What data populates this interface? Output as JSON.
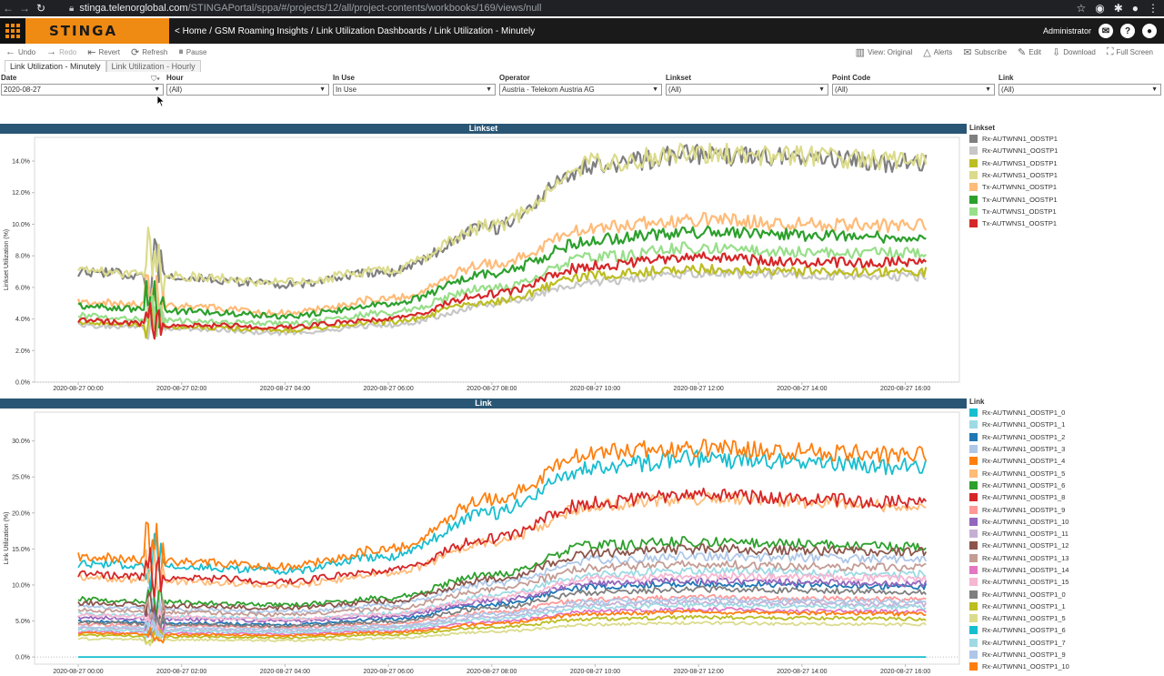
{
  "browser": {
    "url_host": "stinga.telenorglobal.com",
    "url_path": "/STINGAPortal/sppa/#/projects/12/all/project-contents/workbooks/169/views/null"
  },
  "header": {
    "logo": "STINGA",
    "breadcrumb": [
      "< Home",
      "GSM Roaming Insights",
      "Link Utilization Dashboards",
      "Link Utilization - Minutely"
    ],
    "user": "Administrator"
  },
  "toolbar": {
    "left": [
      {
        "label": "Undo",
        "icon": "undo-icon",
        "enabled": true
      },
      {
        "label": "Redo",
        "icon": "redo-icon",
        "enabled": false
      },
      {
        "label": "Revert",
        "icon": "revert-icon",
        "enabled": true
      },
      {
        "label": "Refresh",
        "icon": "refresh-icon",
        "enabled": true
      },
      {
        "label": "Pause",
        "icon": "pause-icon",
        "enabled": true
      }
    ],
    "right": [
      {
        "label": "View: Original",
        "icon": "view-icon"
      },
      {
        "label": "Alerts",
        "icon": "bell-icon"
      },
      {
        "label": "Subscribe",
        "icon": "mail-icon"
      },
      {
        "label": "Edit",
        "icon": "pencil-icon"
      },
      {
        "label": "Download",
        "icon": "download-icon"
      },
      {
        "label": "Full Screen",
        "icon": "fullscreen-icon"
      }
    ]
  },
  "tabs": [
    {
      "label": "Link Utilization - Minutely",
      "active": true
    },
    {
      "label": "Link Utilization - Hourly",
      "active": false
    }
  ],
  "filters": [
    {
      "label": "Date",
      "value": "2020-08-27"
    },
    {
      "label": "Hour",
      "value": "(All)"
    },
    {
      "label": "In Use",
      "value": "In Use"
    },
    {
      "label": "Operator",
      "value": "Austria - Telekom Austria AG"
    },
    {
      "label": "Linkset",
      "value": "(All)"
    },
    {
      "label": "Point Code",
      "value": "(All)"
    },
    {
      "label": "Link",
      "value": "(All)"
    }
  ],
  "charts": {
    "linkset": {
      "title": "Linkset",
      "ylabel": "Linkset Utilization (%)",
      "legend_title": "Linkset"
    },
    "link": {
      "title": "Link",
      "ylabel": "Link Utilization (%)",
      "legend_title": "Link"
    }
  },
  "chart_data": [
    {
      "type": "line",
      "title": "Linkset",
      "ylabel": "Linkset Utilization (%)",
      "xlabel": "",
      "x": [
        "2020-08-27 00:00",
        "2020-08-27 02:00",
        "2020-08-27 04:00",
        "2020-08-27 06:00",
        "2020-08-27 08:00",
        "2020-08-27 10:00",
        "2020-08-27 12:00",
        "2020-08-27 14:00",
        "2020-08-27 16:00"
      ],
      "x_ticks": [
        "2020-08-27 00:00",
        "2020-08-27 02:00",
        "2020-08-27 04:00",
        "2020-08-27 06:00",
        "2020-08-27 08:00",
        "2020-08-27 10:00",
        "2020-08-27 12:00",
        "2020-08-27 14:00",
        "2020-08-27 16:00"
      ],
      "y_ticks": [
        "0.0%",
        "2.0%",
        "4.0%",
        "6.0%",
        "8.0%",
        "10.0%",
        "12.0%",
        "14.0%"
      ],
      "ylim": [
        0,
        15.5
      ],
      "series": [
        {
          "name": "Rx-AUTWNN1_ODSTP1",
          "color": "#7f7f7f",
          "values": [
            7.0,
            6.6,
            6.2,
            7.0,
            9.8,
            13.8,
            14.4,
            14.2,
            13.9
          ]
        },
        {
          "name": "Rx-AUTWNN1_OOSTP1",
          "color": "#c7c7c7",
          "values": [
            3.6,
            3.4,
            3.1,
            3.6,
            4.9,
            6.4,
            6.9,
            6.8,
            6.7
          ]
        },
        {
          "name": "Rx-AUTWNS1_ODSTP1",
          "color": "#bcbd22",
          "values": [
            3.8,
            3.5,
            3.3,
            3.8,
            5.1,
            6.8,
            7.2,
            7.0,
            7.0
          ]
        },
        {
          "name": "Rx-AUTWNS1_OOSTP1",
          "color": "#dbdb8d",
          "values": [
            7.1,
            6.7,
            6.3,
            7.1,
            9.9,
            13.9,
            14.5,
            14.3,
            14.0
          ]
        },
        {
          "name": "Tx-AUTWNN1_ODSTP1",
          "color": "#ffbb78",
          "values": [
            5.1,
            4.8,
            4.4,
            5.3,
            7.5,
            9.8,
            10.3,
            10.0,
            9.9
          ]
        },
        {
          "name": "Tx-AUTWNN1_OOSTP1",
          "color": "#2ca02c",
          "values": [
            4.8,
            4.5,
            4.2,
            4.9,
            6.9,
            9.0,
            9.5,
            9.3,
            9.2
          ]
        },
        {
          "name": "Tx-AUTWNS1_ODSTP1",
          "color": "#98df8a",
          "values": [
            4.2,
            3.9,
            3.7,
            4.4,
            6.0,
            7.9,
            8.5,
            8.2,
            8.2
          ]
        },
        {
          "name": "Tx-AUTWNS1_OOSTP1",
          "color": "#d62728",
          "values": [
            3.9,
            3.6,
            3.5,
            4.0,
            5.6,
            7.4,
            7.9,
            7.6,
            7.6
          ]
        }
      ]
    },
    {
      "type": "line",
      "title": "Link",
      "ylabel": "Link Utilization (%)",
      "xlabel": "",
      "x": [
        "2020-08-27 00:00",
        "2020-08-27 02:00",
        "2020-08-27 04:00",
        "2020-08-27 06:00",
        "2020-08-27 08:00",
        "2020-08-27 10:00",
        "2020-08-27 12:00",
        "2020-08-27 14:00",
        "2020-08-27 16:00"
      ],
      "x_ticks": [
        "2020-08-27 00:00",
        "2020-08-27 02:00",
        "2020-08-27 04:00",
        "2020-08-27 06:00",
        "2020-08-27 08:00",
        "2020-08-27 10:00",
        "2020-08-27 12:00",
        "2020-08-27 14:00",
        "2020-08-27 16:00"
      ],
      "y_ticks": [
        "0.0%",
        "5.0%",
        "10.0%",
        "15.0%",
        "20.0%",
        "25.0%",
        "30.0%"
      ],
      "ylim": [
        -1,
        34
      ],
      "series": [
        {
          "name": "Rx-AUTWNN1_ODSTP1_0",
          "color": "#17becf",
          "values": [
            13.0,
            12.5,
            12.0,
            14.0,
            20.0,
            26.5,
            27.5,
            27.0,
            26.5
          ]
        },
        {
          "name": "Rx-AUTWNN1_ODSTP1_1",
          "color": "#9edae5",
          "values": [
            6.0,
            5.6,
            5.3,
            6.0,
            8.5,
            11.5,
            12.0,
            11.8,
            11.5
          ]
        },
        {
          "name": "Rx-AUTWNN1_ODSTP1_2",
          "color": "#1f77b4",
          "values": [
            5.0,
            4.7,
            4.5,
            5.2,
            7.3,
            9.8,
            10.2,
            10.0,
            9.8
          ]
        },
        {
          "name": "Rx-AUTWNN1_ODSTP1_3",
          "color": "#aec7e8",
          "values": [
            7.0,
            6.6,
            6.3,
            7.2,
            10.2,
            13.5,
            14.0,
            13.8,
            13.5
          ]
        },
        {
          "name": "Rx-AUTWNN1_ODSTP1_4",
          "color": "#ff7f0e",
          "values": [
            14.0,
            13.2,
            12.6,
            15.0,
            22.0,
            28.5,
            29.0,
            28.5,
            28.0
          ]
        },
        {
          "name": "Rx-AUTWNN1_ODSTP1_5",
          "color": "#ffbb78",
          "values": [
            11.0,
            10.5,
            10.0,
            11.5,
            16.0,
            21.0,
            22.0,
            21.5,
            21.0
          ]
        },
        {
          "name": "Rx-AUTWNN1_ODSTP1_6",
          "color": "#2ca02c",
          "values": [
            8.0,
            7.6,
            7.2,
            8.2,
            11.5,
            15.5,
            16.0,
            15.7,
            15.3
          ]
        },
        {
          "name": "Rx-AUTWNN1_ODSTP1_8",
          "color": "#d62728",
          "values": [
            11.5,
            11.0,
            10.5,
            12.0,
            16.5,
            21.5,
            22.5,
            22.0,
            21.5
          ]
        },
        {
          "name": "Rx-AUTWNN1_ODSTP1_9",
          "color": "#ff9896",
          "values": [
            4.5,
            4.3,
            4.1,
            4.6,
            6.2,
            8.0,
            8.3,
            8.1,
            8.0
          ]
        },
        {
          "name": "Rx-AUTWNN1_ODSTP1_10",
          "color": "#9467bd",
          "values": [
            5.5,
            5.2,
            5.0,
            5.6,
            7.8,
            10.2,
            10.6,
            10.4,
            10.2
          ]
        },
        {
          "name": "Rx-AUTWNN1_ODSTP1_11",
          "color": "#c5b0d5",
          "values": [
            4.0,
            3.8,
            3.6,
            4.1,
            5.6,
            7.3,
            7.6,
            7.4,
            7.3
          ]
        },
        {
          "name": "Rx-AUTWNN1_ODSTP1_12",
          "color": "#8c564b",
          "values": [
            7.5,
            7.1,
            6.8,
            7.7,
            10.8,
            14.5,
            15.0,
            14.8,
            14.5
          ]
        },
        {
          "name": "Rx-AUTWNN1_ODSTP1_13",
          "color": "#c49c94",
          "values": [
            6.5,
            6.2,
            5.9,
            6.7,
            9.3,
            12.4,
            12.9,
            12.6,
            12.4
          ]
        },
        {
          "name": "Rx-AUTWNN1_ODSTP1_14",
          "color": "#e377c2",
          "values": [
            3.5,
            3.3,
            3.2,
            3.6,
            4.9,
            6.3,
            6.6,
            6.4,
            6.3
          ]
        },
        {
          "name": "Rx-AUTWNN1_ODSTP1_15",
          "color": "#f7b6d2",
          "values": [
            5.8,
            5.5,
            5.2,
            5.9,
            8.2,
            10.9,
            11.3,
            11.1,
            10.9
          ]
        },
        {
          "name": "Rx-AUTWNN1_OOSTP1_0",
          "color": "#7f7f7f",
          "values": [
            4.8,
            4.5,
            4.3,
            4.9,
            6.8,
            9.0,
            9.4,
            9.2,
            9.0
          ]
        },
        {
          "name": "Rx-AUTWNN1_OOSTP1_1",
          "color": "#bcbd22",
          "values": [
            3.0,
            2.8,
            2.7,
            3.1,
            4.1,
            5.3,
            5.5,
            5.4,
            5.3
          ]
        },
        {
          "name": "Rx-AUTWNN1_OOSTP1_5",
          "color": "#dbdb8d",
          "values": [
            2.5,
            2.4,
            2.3,
            2.6,
            3.5,
            4.5,
            4.7,
            4.6,
            4.5
          ]
        },
        {
          "name": "Rx-AUTWNN1_OOSTP1_6",
          "color": "#17becf",
          "values": [
            0,
            0,
            0,
            0,
            0,
            0,
            0,
            0,
            0
          ]
        },
        {
          "name": "Rx-AUTWNN1_OOSTP1_7",
          "color": "#9edae5",
          "values": [
            3.8,
            3.6,
            3.4,
            3.9,
            5.3,
            6.9,
            7.2,
            7.0,
            6.9
          ]
        },
        {
          "name": "Rx-AUTWNN1_OOSTP1_9",
          "color": "#aec7e8",
          "values": [
            4.2,
            4.0,
            3.8,
            4.3,
            5.9,
            7.7,
            8.0,
            7.8,
            7.7
          ]
        },
        {
          "name": "Rx-AUTWNN1_OOSTP1_10",
          "color": "#ff7f0e",
          "values": [
            3.3,
            3.1,
            3.0,
            3.4,
            4.6,
            6.0,
            6.2,
            6.1,
            6.0
          ]
        }
      ]
    }
  ]
}
